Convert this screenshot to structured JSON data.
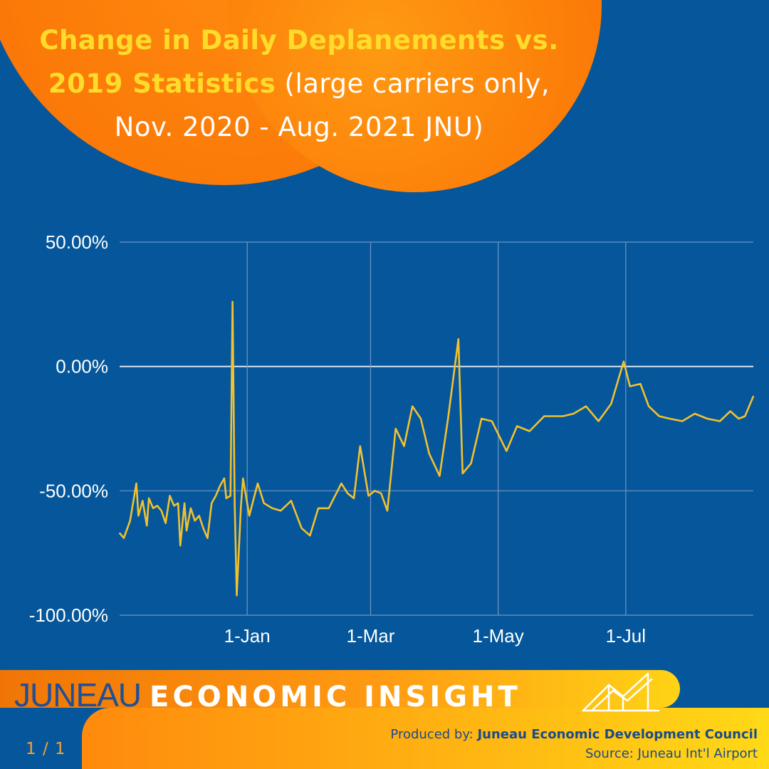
{
  "title": {
    "bold_text": "Change in Daily Deplanements vs. 2019 Statistics",
    "normal_text": "(large carriers only, Nov. 2020 - Aug. 2021 JNU)"
  },
  "colors": {
    "background": "#05569a",
    "accent_orange": "#fb7a08",
    "title_highlight": "#ffdb2a",
    "line": "#f2c12e",
    "grid": "#6f97c4"
  },
  "chart_data": {
    "type": "line",
    "x_start_date": "2020-11-01",
    "x_end_date": "2021-08-31",
    "xticks": [
      {
        "label": "1-Jan",
        "date": "2021-01-01"
      },
      {
        "label": "1-Mar",
        "date": "2021-03-01"
      },
      {
        "label": "1-May",
        "date": "2021-05-01"
      },
      {
        "label": "1-Jul",
        "date": "2021-07-01"
      }
    ],
    "ylim": [
      -100,
      50
    ],
    "yticks": [
      {
        "label": "50.00%",
        "value": 50
      },
      {
        "label": "0.00%",
        "value": 0
      },
      {
        "label": "-50.00%",
        "value": -50
      },
      {
        "label": "-100.00%",
        "value": -100
      }
    ],
    "grid": true,
    "series": [
      {
        "x": [
          "2020-11-01",
          "2020-11-03",
          "2020-11-06",
          "2020-11-09",
          "2020-11-10",
          "2020-11-12",
          "2020-11-14",
          "2020-11-15",
          "2020-11-17",
          "2020-11-19",
          "2020-11-21",
          "2020-11-23",
          "2020-11-25",
          "2020-11-27",
          "2020-11-29",
          "2020-11-30",
          "2020-12-02",
          "2020-12-03",
          "2020-12-05",
          "2020-12-07",
          "2020-12-09",
          "2020-12-11",
          "2020-12-13",
          "2020-12-15",
          "2020-12-17",
          "2020-12-19",
          "2020-12-21",
          "2020-12-22",
          "2020-12-24",
          "2020-12-25",
          "2020-12-26",
          "2020-12-27",
          "2020-12-29",
          "2020-12-30",
          "2021-01-02",
          "2021-01-06",
          "2021-01-09",
          "2021-01-13",
          "2021-01-17",
          "2021-01-22",
          "2021-01-27",
          "2021-01-31",
          "2021-02-04",
          "2021-02-09",
          "2021-02-15",
          "2021-02-18",
          "2021-02-21",
          "2021-02-24",
          "2021-02-28",
          "2021-03-03",
          "2021-03-06",
          "2021-03-09",
          "2021-03-13",
          "2021-03-17",
          "2021-03-21",
          "2021-03-25",
          "2021-03-29",
          "2021-04-03",
          "2021-04-07",
          "2021-04-12",
          "2021-04-14",
          "2021-04-18",
          "2021-04-23",
          "2021-04-28",
          "2021-05-05",
          "2021-05-10",
          "2021-05-16",
          "2021-05-23",
          "2021-05-28",
          "2021-06-01",
          "2021-06-06",
          "2021-06-12",
          "2021-06-18",
          "2021-06-24",
          "2021-06-30",
          "2021-07-03",
          "2021-07-08",
          "2021-07-12",
          "2021-07-17",
          "2021-07-22",
          "2021-07-28",
          "2021-08-03",
          "2021-08-09",
          "2021-08-15",
          "2021-08-20",
          "2021-08-24",
          "2021-08-27",
          "2021-08-31"
        ],
        "values": [
          -67,
          -69,
          -62,
          -47,
          -60,
          -54,
          -64,
          -53,
          -57,
          -56,
          -58,
          -63,
          -52,
          -56,
          -55,
          -72,
          -55,
          -66,
          -57,
          -62,
          -60,
          -65,
          -69,
          -55,
          -52,
          -48,
          -45,
          -53,
          -52,
          26,
          -55,
          -92,
          -56,
          -45,
          -60,
          -47,
          -55,
          -57,
          -58,
          -54,
          -65,
          -68,
          -57,
          -57,
          -47,
          -51,
          -53,
          -32,
          -52,
          -50,
          -51,
          -58,
          -25,
          -32,
          -16,
          -21,
          -35,
          -44,
          -21,
          11,
          -43,
          -39,
          -21,
          -22,
          -34,
          -24,
          -26,
          -20,
          -20,
          -20,
          -19,
          -16,
          -22,
          -15,
          2,
          -8,
          -7,
          -16,
          -20,
          -21,
          -22,
          -19,
          -21,
          -22,
          -18,
          -21,
          -20,
          -12
        ]
      }
    ]
  },
  "footer": {
    "brand_part1": "JUNEAU",
    "brand_part2": "ECONOMIC INSIGHT",
    "page": "1 / 1",
    "produced_label": "Produced by:",
    "producer": "Juneau Economic Development Council",
    "source": "Source: Juneau Int'l Airport"
  }
}
